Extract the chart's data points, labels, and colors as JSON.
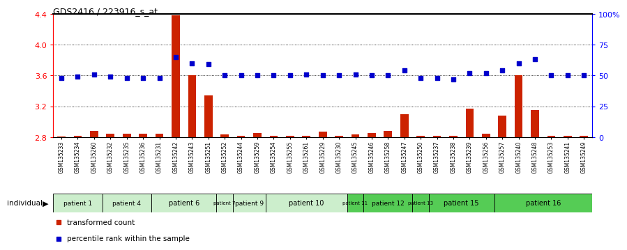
{
  "title": "GDS2416 / 223916_s_at",
  "samples": [
    "GSM135233",
    "GSM135234",
    "GSM135260",
    "GSM135232",
    "GSM135235",
    "GSM135236",
    "GSM135231",
    "GSM135242",
    "GSM135243",
    "GSM135251",
    "GSM135252",
    "GSM135244",
    "GSM135259",
    "GSM135254",
    "GSM135255",
    "GSM135261",
    "GSM135229",
    "GSM135230",
    "GSM135245",
    "GSM135246",
    "GSM135258",
    "GSM135247",
    "GSM135250",
    "GSM135237",
    "GSM135238",
    "GSM135239",
    "GSM135256",
    "GSM135257",
    "GSM135240",
    "GSM135248",
    "GSM135253",
    "GSM135241",
    "GSM135249"
  ],
  "red_values": [
    2.81,
    2.82,
    2.88,
    2.84,
    2.84,
    2.84,
    2.84,
    4.38,
    3.6,
    3.34,
    2.83,
    2.82,
    2.85,
    2.82,
    2.82,
    2.82,
    2.87,
    2.82,
    2.83,
    2.85,
    2.88,
    3.1,
    2.82,
    2.82,
    2.82,
    3.17,
    2.84,
    3.08,
    3.6,
    3.15,
    2.82,
    2.82,
    2.82
  ],
  "blue_values_pct": [
    48,
    49,
    51,
    49,
    48,
    48,
    48,
    65,
    60,
    59,
    50,
    50,
    50,
    50,
    50,
    51,
    50,
    50,
    51,
    50,
    50,
    54,
    48,
    48,
    47,
    52,
    52,
    54,
    60,
    63,
    50,
    50,
    50
  ],
  "patients": [
    {
      "label": "patient 1",
      "start": 0,
      "end": 2,
      "color": "#cceecc"
    },
    {
      "label": "patient 4",
      "start": 3,
      "end": 5,
      "color": "#cceecc"
    },
    {
      "label": "patient 6",
      "start": 6,
      "end": 9,
      "color": "#cceecc"
    },
    {
      "label": "patient 7",
      "start": 10,
      "end": 10,
      "color": "#cceecc"
    },
    {
      "label": "patient 9",
      "start": 11,
      "end": 12,
      "color": "#cceecc"
    },
    {
      "label": "patient 10",
      "start": 13,
      "end": 17,
      "color": "#cceecc"
    },
    {
      "label": "patient 11",
      "start": 18,
      "end": 18,
      "color": "#55cc55"
    },
    {
      "label": "patient 12",
      "start": 19,
      "end": 21,
      "color": "#55cc55"
    },
    {
      "label": "patient 13",
      "start": 22,
      "end": 22,
      "color": "#55cc55"
    },
    {
      "label": "patient 15",
      "start": 23,
      "end": 26,
      "color": "#55cc55"
    },
    {
      "label": "patient 16",
      "start": 27,
      "end": 32,
      "color": "#55cc55"
    }
  ],
  "ylim_left": [
    2.8,
    4.4
  ],
  "ylim_right": [
    0,
    100
  ],
  "yticks_left": [
    2.8,
    3.2,
    3.6,
    4.0,
    4.4
  ],
  "ytick_labels_left": [
    "2.8",
    "3.2",
    "3.6",
    "4.0",
    "4.4"
  ],
  "yticks_right": [
    0,
    25,
    50,
    75,
    100
  ],
  "ytick_labels_right": [
    "0",
    "25",
    "50",
    "75",
    "100%"
  ],
  "bar_color": "#cc2200",
  "dot_color": "#0000cc",
  "bar_width": 0.5,
  "dot_size": 18,
  "legend_red": "transformed count",
  "legend_blue": "percentile rank within the sample"
}
